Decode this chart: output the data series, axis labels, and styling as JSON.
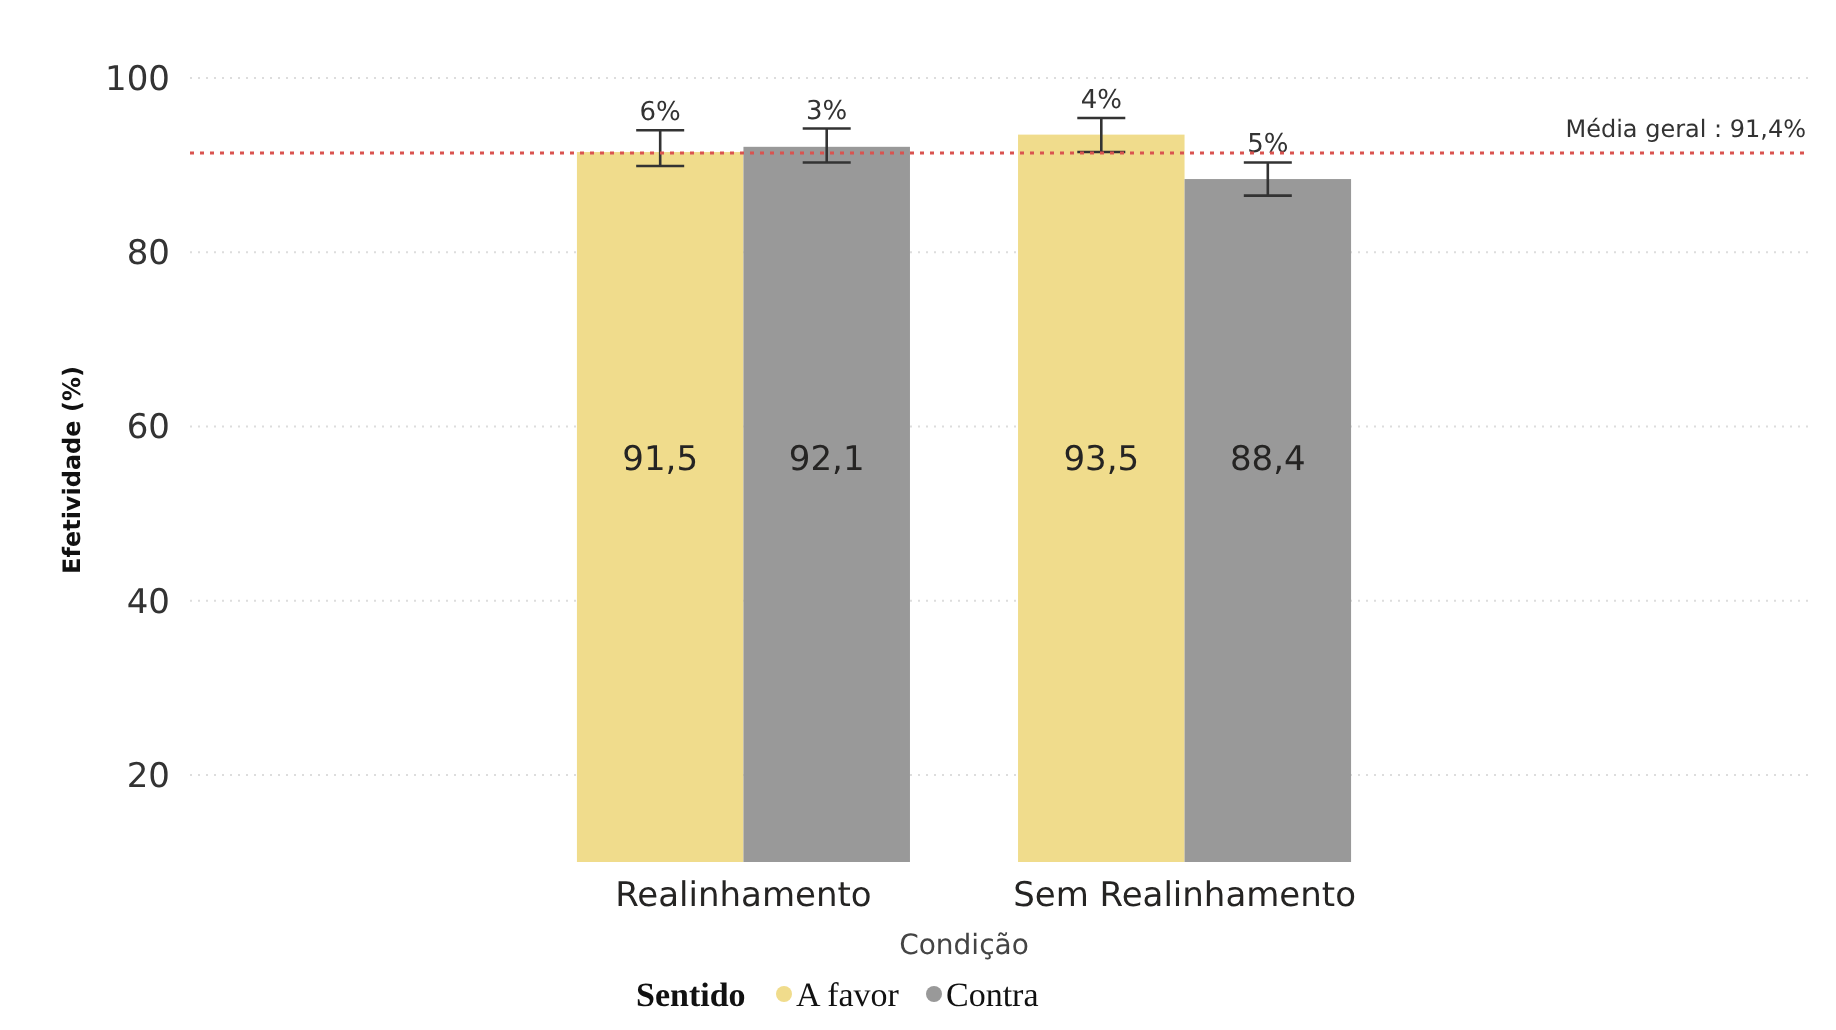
{
  "chart_data": {
    "type": "bar",
    "xlabel": "Condição",
    "ylabel": "Efetividade (%)",
    "legend_title": "Sentido",
    "categories": [
      "Realinhamento",
      "Sem Realinhamento"
    ],
    "series": [
      {
        "name": "A favor",
        "color": "#f0dc8c",
        "values": [
          91.5,
          93.5
        ],
        "value_labels": [
          "91,5",
          "93,5"
        ],
        "errors": [
          [
            89.9,
            94.0
          ],
          [
            91.5,
            95.4
          ]
        ]
      },
      {
        "name": "Contra",
        "color": "#999999",
        "values": [
          92.1,
          88.4
        ],
        "value_labels": [
          "92,1",
          "88,4"
        ],
        "errors": [
          [
            90.3,
            94.2
          ],
          [
            86.5,
            90.3
          ]
        ]
      }
    ],
    "ylim": [
      10,
      100
    ],
    "yticks": [
      20,
      40,
      60,
      80,
      100
    ],
    "grid": "y",
    "legend": "bottom",
    "ref_lines": [
      {
        "axis": "y",
        "value": 91.4,
        "label": "Média geral : 91,4%",
        "color": "#d9534f",
        "line_style": "dotted"
      }
    ],
    "annotations": [
      "6%",
      "3%",
      "4%",
      "5%"
    ]
  }
}
